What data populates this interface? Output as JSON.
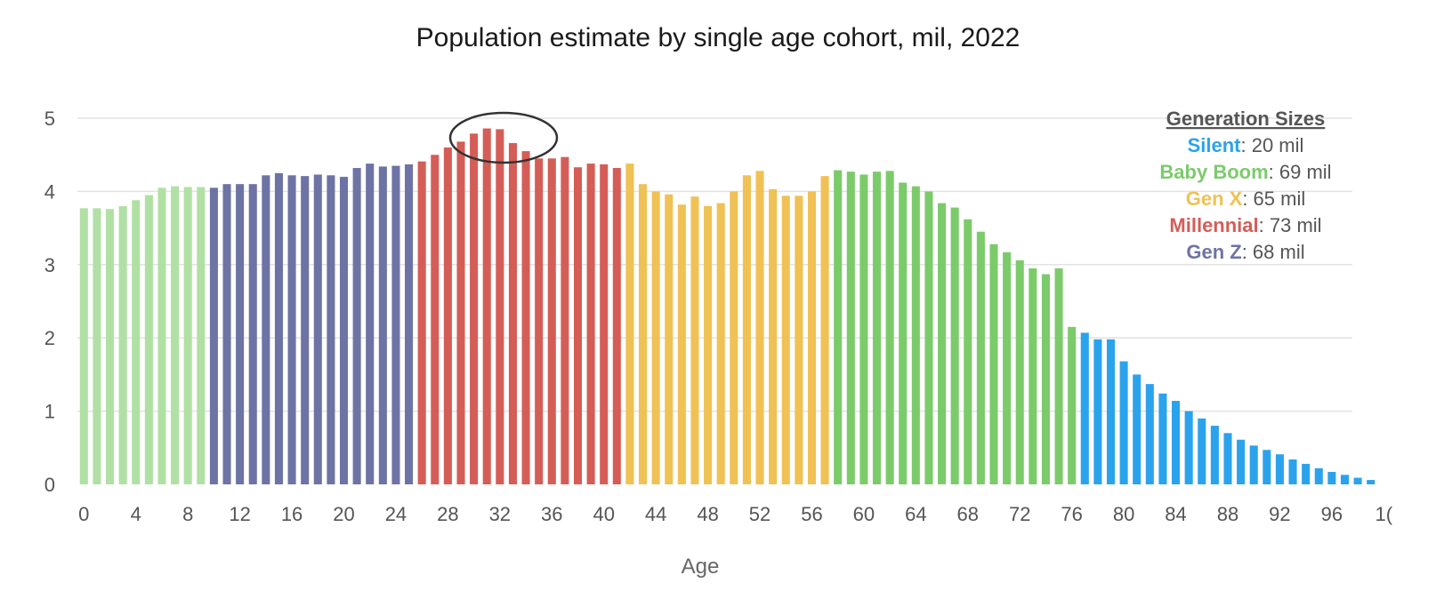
{
  "chart_data": {
    "type": "bar",
    "title": "Population estimate by single age cohort, mil, 2022",
    "xlabel": "Age",
    "ylabel": "",
    "ylim": [
      0,
      5
    ],
    "yticks": [
      "0",
      "1",
      "2",
      "3",
      "4",
      "5"
    ],
    "xticks": [
      "0",
      "4",
      "8",
      "12",
      "16",
      "20",
      "24",
      "28",
      "32",
      "36",
      "40",
      "44",
      "48",
      "52",
      "56",
      "60",
      "64",
      "68",
      "72",
      "76",
      "80",
      "84",
      "88",
      "92",
      "96",
      "1("
    ],
    "ages": [
      0,
      1,
      2,
      3,
      4,
      5,
      6,
      7,
      8,
      9,
      10,
      11,
      12,
      13,
      14,
      15,
      16,
      17,
      18,
      19,
      20,
      21,
      22,
      23,
      24,
      25,
      26,
      27,
      28,
      29,
      30,
      31,
      32,
      33,
      34,
      35,
      36,
      37,
      38,
      39,
      40,
      41,
      42,
      43,
      44,
      45,
      46,
      47,
      48,
      49,
      50,
      51,
      52,
      53,
      54,
      55,
      56,
      57,
      58,
      59,
      60,
      61,
      62,
      63,
      64,
      65,
      66,
      67,
      68,
      69,
      70,
      71,
      72,
      73,
      74,
      75,
      76,
      77,
      78,
      79,
      80,
      81,
      82,
      83,
      84,
      85,
      86,
      87,
      88,
      89,
      90,
      91,
      92,
      93,
      94,
      95,
      96,
      97,
      98,
      99
    ],
    "values": [
      3.77,
      3.77,
      3.76,
      3.8,
      3.88,
      3.95,
      4.05,
      4.07,
      4.06,
      4.06,
      4.05,
      4.1,
      4.1,
      4.1,
      4.22,
      4.25,
      4.22,
      4.21,
      4.23,
      4.22,
      4.2,
      4.32,
      4.38,
      4.34,
      4.35,
      4.37,
      4.41,
      4.5,
      4.6,
      4.68,
      4.79,
      4.86,
      4.85,
      4.66,
      4.55,
      4.45,
      4.45,
      4.47,
      4.33,
      4.38,
      4.37,
      4.32,
      4.38,
      4.1,
      4.0,
      3.96,
      3.82,
      3.93,
      3.8,
      3.84,
      4.0,
      4.22,
      4.28,
      4.03,
      3.94,
      3.94,
      4.0,
      4.21,
      4.29,
      4.27,
      4.23,
      4.27,
      4.28,
      4.12,
      4.07,
      4.0,
      3.84,
      3.78,
      3.62,
      3.45,
      3.28,
      3.17,
      3.06,
      2.95,
      2.87,
      2.95,
      2.15,
      2.07,
      1.98,
      1.98,
      1.68,
      1.5,
      1.37,
      1.24,
      1.14,
      1.0,
      0.9,
      0.8,
      0.7,
      0.61,
      0.53,
      0.47,
      0.41,
      0.34,
      0.28,
      0.22,
      0.17,
      0.13,
      0.09,
      0.06
    ],
    "generations": [
      {
        "name": "Gen Z",
        "from_age": 10,
        "to_age": 25,
        "color": "#6e73a5"
      },
      {
        "name": "Millennial",
        "from_age": 26,
        "to_age": 41,
        "color": "#d55d57"
      },
      {
        "name": "Gen X",
        "from_age": 42,
        "to_age": 57,
        "color": "#f0c154"
      },
      {
        "name": "Baby Boom",
        "from_age": 58,
        "to_age": 76,
        "color": "#7ccb6b"
      },
      {
        "name": "Silent",
        "from_age": 77,
        "to_age": 99,
        "color": "#2ba3ec"
      }
    ],
    "base_color": "#b1e0a4",
    "annotation": "circle around peak bars (ages 29-33)",
    "legend": {
      "title": "Generation Sizes",
      "entries": [
        {
          "name": "Silent",
          "value": ": 20 mil",
          "color": "#2ba3ec"
        },
        {
          "name": "Baby Boom",
          "value": ": 69 mil",
          "color": "#7ccb6b"
        },
        {
          "name": "Gen X",
          "value": ": 65 mil",
          "color": "#f0c154"
        },
        {
          "name": "Millennial",
          "value": ": 73 mil",
          "color": "#d55d57"
        },
        {
          "name": "Gen Z",
          "value": ": 68 mil",
          "color": "#6e73a5"
        }
      ]
    }
  }
}
